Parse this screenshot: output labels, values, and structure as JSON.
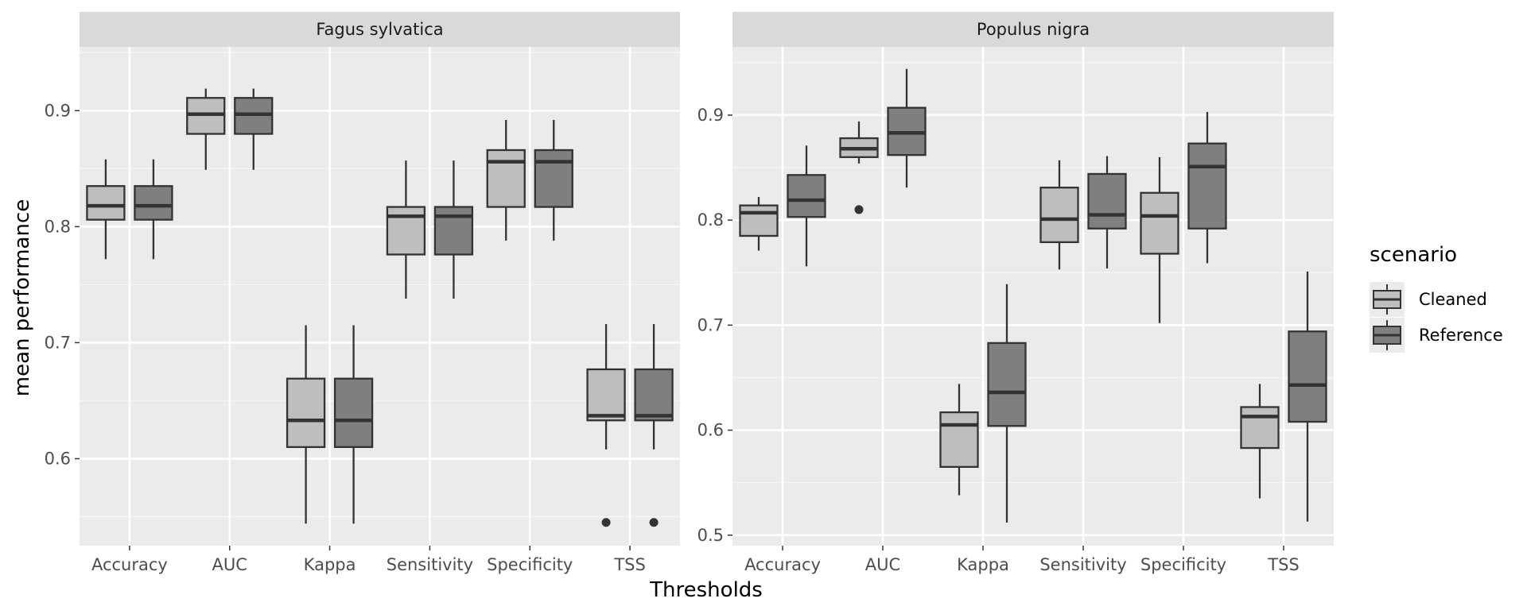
{
  "chart_data": {
    "type": "boxplot",
    "xlabel": "Thresholds",
    "ylabel": "mean performance",
    "categories": [
      "Accuracy",
      "AUC",
      "Kappa",
      "Sensitivity",
      "Specificity",
      "TSS"
    ],
    "legend": {
      "title": "scenario",
      "position": "right",
      "entries": [
        {
          "name": "Cleaned",
          "color": "#bebebe"
        },
        {
          "name": "Reference",
          "color": "#7f7f7f"
        }
      ]
    },
    "panels": [
      {
        "title": "Fagus sylvatica",
        "ylim": [
          0.525,
          0.955
        ],
        "yticks": [
          0.6,
          0.7,
          0.8,
          0.9
        ],
        "yticklabels": [
          "0.6",
          "0.7",
          "0.8",
          "0.9"
        ],
        "series": [
          {
            "name": "Cleaned",
            "boxes": [
              {
                "category": "Accuracy",
                "min": 0.772,
                "q1": 0.806,
                "median": 0.818,
                "q3": 0.835,
                "max": 0.858,
                "outliers": []
              },
              {
                "category": "AUC",
                "min": 0.849,
                "q1": 0.88,
                "median": 0.897,
                "q3": 0.911,
                "max": 0.919,
                "outliers": []
              },
              {
                "category": "Kappa",
                "min": 0.544,
                "q1": 0.61,
                "median": 0.633,
                "q3": 0.669,
                "max": 0.715,
                "outliers": []
              },
              {
                "category": "Sensitivity",
                "min": 0.738,
                "q1": 0.776,
                "median": 0.809,
                "q3": 0.817,
                "max": 0.857,
                "outliers": []
              },
              {
                "category": "Specificity",
                "min": 0.788,
                "q1": 0.817,
                "median": 0.856,
                "q3": 0.866,
                "max": 0.892,
                "outliers": []
              },
              {
                "category": "TSS",
                "min": 0.608,
                "q1": 0.633,
                "median": 0.637,
                "q3": 0.677,
                "max": 0.716,
                "outliers": [
                  0.545
                ]
              }
            ]
          },
          {
            "name": "Reference",
            "boxes": [
              {
                "category": "Accuracy",
                "min": 0.772,
                "q1": 0.806,
                "median": 0.818,
                "q3": 0.835,
                "max": 0.858,
                "outliers": []
              },
              {
                "category": "AUC",
                "min": 0.849,
                "q1": 0.88,
                "median": 0.897,
                "q3": 0.911,
                "max": 0.919,
                "outliers": []
              },
              {
                "category": "Kappa",
                "min": 0.544,
                "q1": 0.61,
                "median": 0.633,
                "q3": 0.669,
                "max": 0.715,
                "outliers": []
              },
              {
                "category": "Sensitivity",
                "min": 0.738,
                "q1": 0.776,
                "median": 0.809,
                "q3": 0.817,
                "max": 0.857,
                "outliers": []
              },
              {
                "category": "Specificity",
                "min": 0.788,
                "q1": 0.817,
                "median": 0.856,
                "q3": 0.866,
                "max": 0.892,
                "outliers": []
              },
              {
                "category": "TSS",
                "min": 0.608,
                "q1": 0.633,
                "median": 0.637,
                "q3": 0.677,
                "max": 0.716,
                "outliers": [
                  0.545
                ]
              }
            ]
          }
        ]
      },
      {
        "title": "Populus nigra",
        "ylim": [
          0.49,
          0.965
        ],
        "yticks": [
          0.5,
          0.6,
          0.7,
          0.8,
          0.9
        ],
        "yticklabels": [
          "0.5",
          "0.6",
          "0.7",
          "0.8",
          "0.9"
        ],
        "series": [
          {
            "name": "Cleaned",
            "boxes": [
              {
                "category": "Accuracy",
                "min": 0.771,
                "q1": 0.785,
                "median": 0.807,
                "q3": 0.814,
                "max": 0.822,
                "outliers": []
              },
              {
                "category": "AUC",
                "min": 0.854,
                "q1": 0.86,
                "median": 0.868,
                "q3": 0.878,
                "max": 0.894,
                "outliers": [
                  0.81
                ]
              },
              {
                "category": "Kappa",
                "min": 0.538,
                "q1": 0.565,
                "median": 0.605,
                "q3": 0.617,
                "max": 0.644,
                "outliers": []
              },
              {
                "category": "Sensitivity",
                "min": 0.753,
                "q1": 0.779,
                "median": 0.801,
                "q3": 0.831,
                "max": 0.857,
                "outliers": []
              },
              {
                "category": "Specificity",
                "min": 0.702,
                "q1": 0.768,
                "median": 0.804,
                "q3": 0.826,
                "max": 0.86,
                "outliers": []
              },
              {
                "category": "TSS",
                "min": 0.535,
                "q1": 0.583,
                "median": 0.613,
                "q3": 0.622,
                "max": 0.644,
                "outliers": []
              }
            ]
          },
          {
            "name": "Reference",
            "boxes": [
              {
                "category": "Accuracy",
                "min": 0.756,
                "q1": 0.803,
                "median": 0.819,
                "q3": 0.843,
                "max": 0.871,
                "outliers": []
              },
              {
                "category": "AUC",
                "min": 0.831,
                "q1": 0.862,
                "median": 0.883,
                "q3": 0.907,
                "max": 0.944,
                "outliers": []
              },
              {
                "category": "Kappa",
                "min": 0.512,
                "q1": 0.604,
                "median": 0.636,
                "q3": 0.683,
                "max": 0.739,
                "outliers": []
              },
              {
                "category": "Sensitivity",
                "min": 0.754,
                "q1": 0.792,
                "median": 0.805,
                "q3": 0.844,
                "max": 0.861,
                "outliers": []
              },
              {
                "category": "Specificity",
                "min": 0.759,
                "q1": 0.792,
                "median": 0.851,
                "q3": 0.873,
                "max": 0.903,
                "outliers": []
              },
              {
                "category": "TSS",
                "min": 0.513,
                "q1": 0.608,
                "median": 0.643,
                "q3": 0.694,
                "max": 0.751,
                "outliers": []
              }
            ]
          }
        ]
      }
    ]
  }
}
